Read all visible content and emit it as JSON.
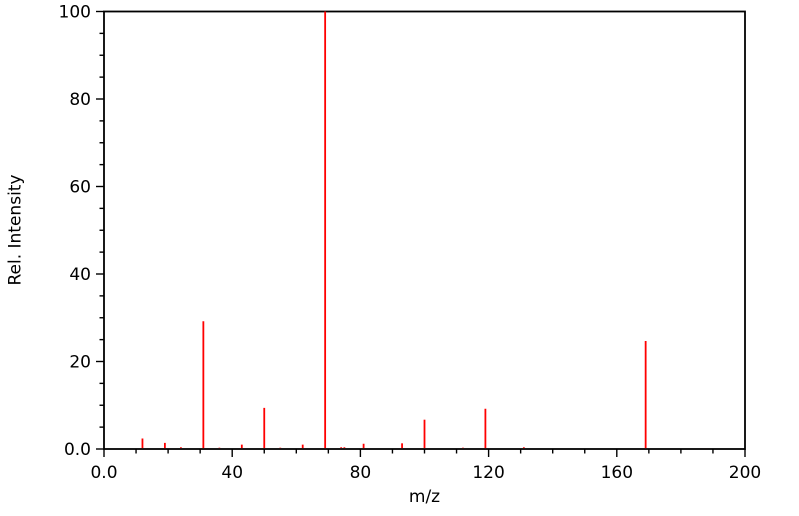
{
  "chart_data": {
    "type": "bar",
    "subtype": "mass-spectrum-stick-plot",
    "title": "",
    "xlabel": "m/z",
    "ylabel": "Rel. Intensity",
    "xlim": [
      0,
      200
    ],
    "ylim": [
      0,
      100
    ],
    "x_major_ticks": [
      0,
      40,
      80,
      120,
      160,
      200
    ],
    "x_tick_labels": [
      "0.0",
      "40",
      "80",
      "120",
      "160",
      "200"
    ],
    "x_minor_step": 10,
    "y_major_ticks": [
      0,
      20,
      40,
      60,
      80,
      100
    ],
    "y_tick_labels": [
      "0.0",
      "20",
      "40",
      "60",
      "80",
      "100"
    ],
    "y_minor_step": 5,
    "grid": false,
    "legend": "none",
    "bar_color": "#ff0000",
    "axis_color": "#000000",
    "background_color": "#ffffff",
    "series": [
      {
        "name": "relative intensity",
        "peaks": [
          {
            "mz": 12,
            "intensity": 2.4
          },
          {
            "mz": 19,
            "intensity": 1.4
          },
          {
            "mz": 24,
            "intensity": 0.4
          },
          {
            "mz": 31,
            "intensity": 29.2
          },
          {
            "mz": 36,
            "intensity": 0.3
          },
          {
            "mz": 43,
            "intensity": 1.0
          },
          {
            "mz": 50,
            "intensity": 9.4
          },
          {
            "mz": 55,
            "intensity": 0.3
          },
          {
            "mz": 62,
            "intensity": 1.0
          },
          {
            "mz": 69,
            "intensity": 100.0
          },
          {
            "mz": 74,
            "intensity": 0.4
          },
          {
            "mz": 75,
            "intensity": 0.4
          },
          {
            "mz": 81,
            "intensity": 1.2
          },
          {
            "mz": 93,
            "intensity": 1.3
          },
          {
            "mz": 100,
            "intensity": 6.7
          },
          {
            "mz": 112,
            "intensity": 0.3
          },
          {
            "mz": 119,
            "intensity": 9.2
          },
          {
            "mz": 131,
            "intensity": 0.4
          },
          {
            "mz": 169,
            "intensity": 24.7
          },
          {
            "mz": 188,
            "intensity": 0.2
          }
        ]
      }
    ]
  }
}
